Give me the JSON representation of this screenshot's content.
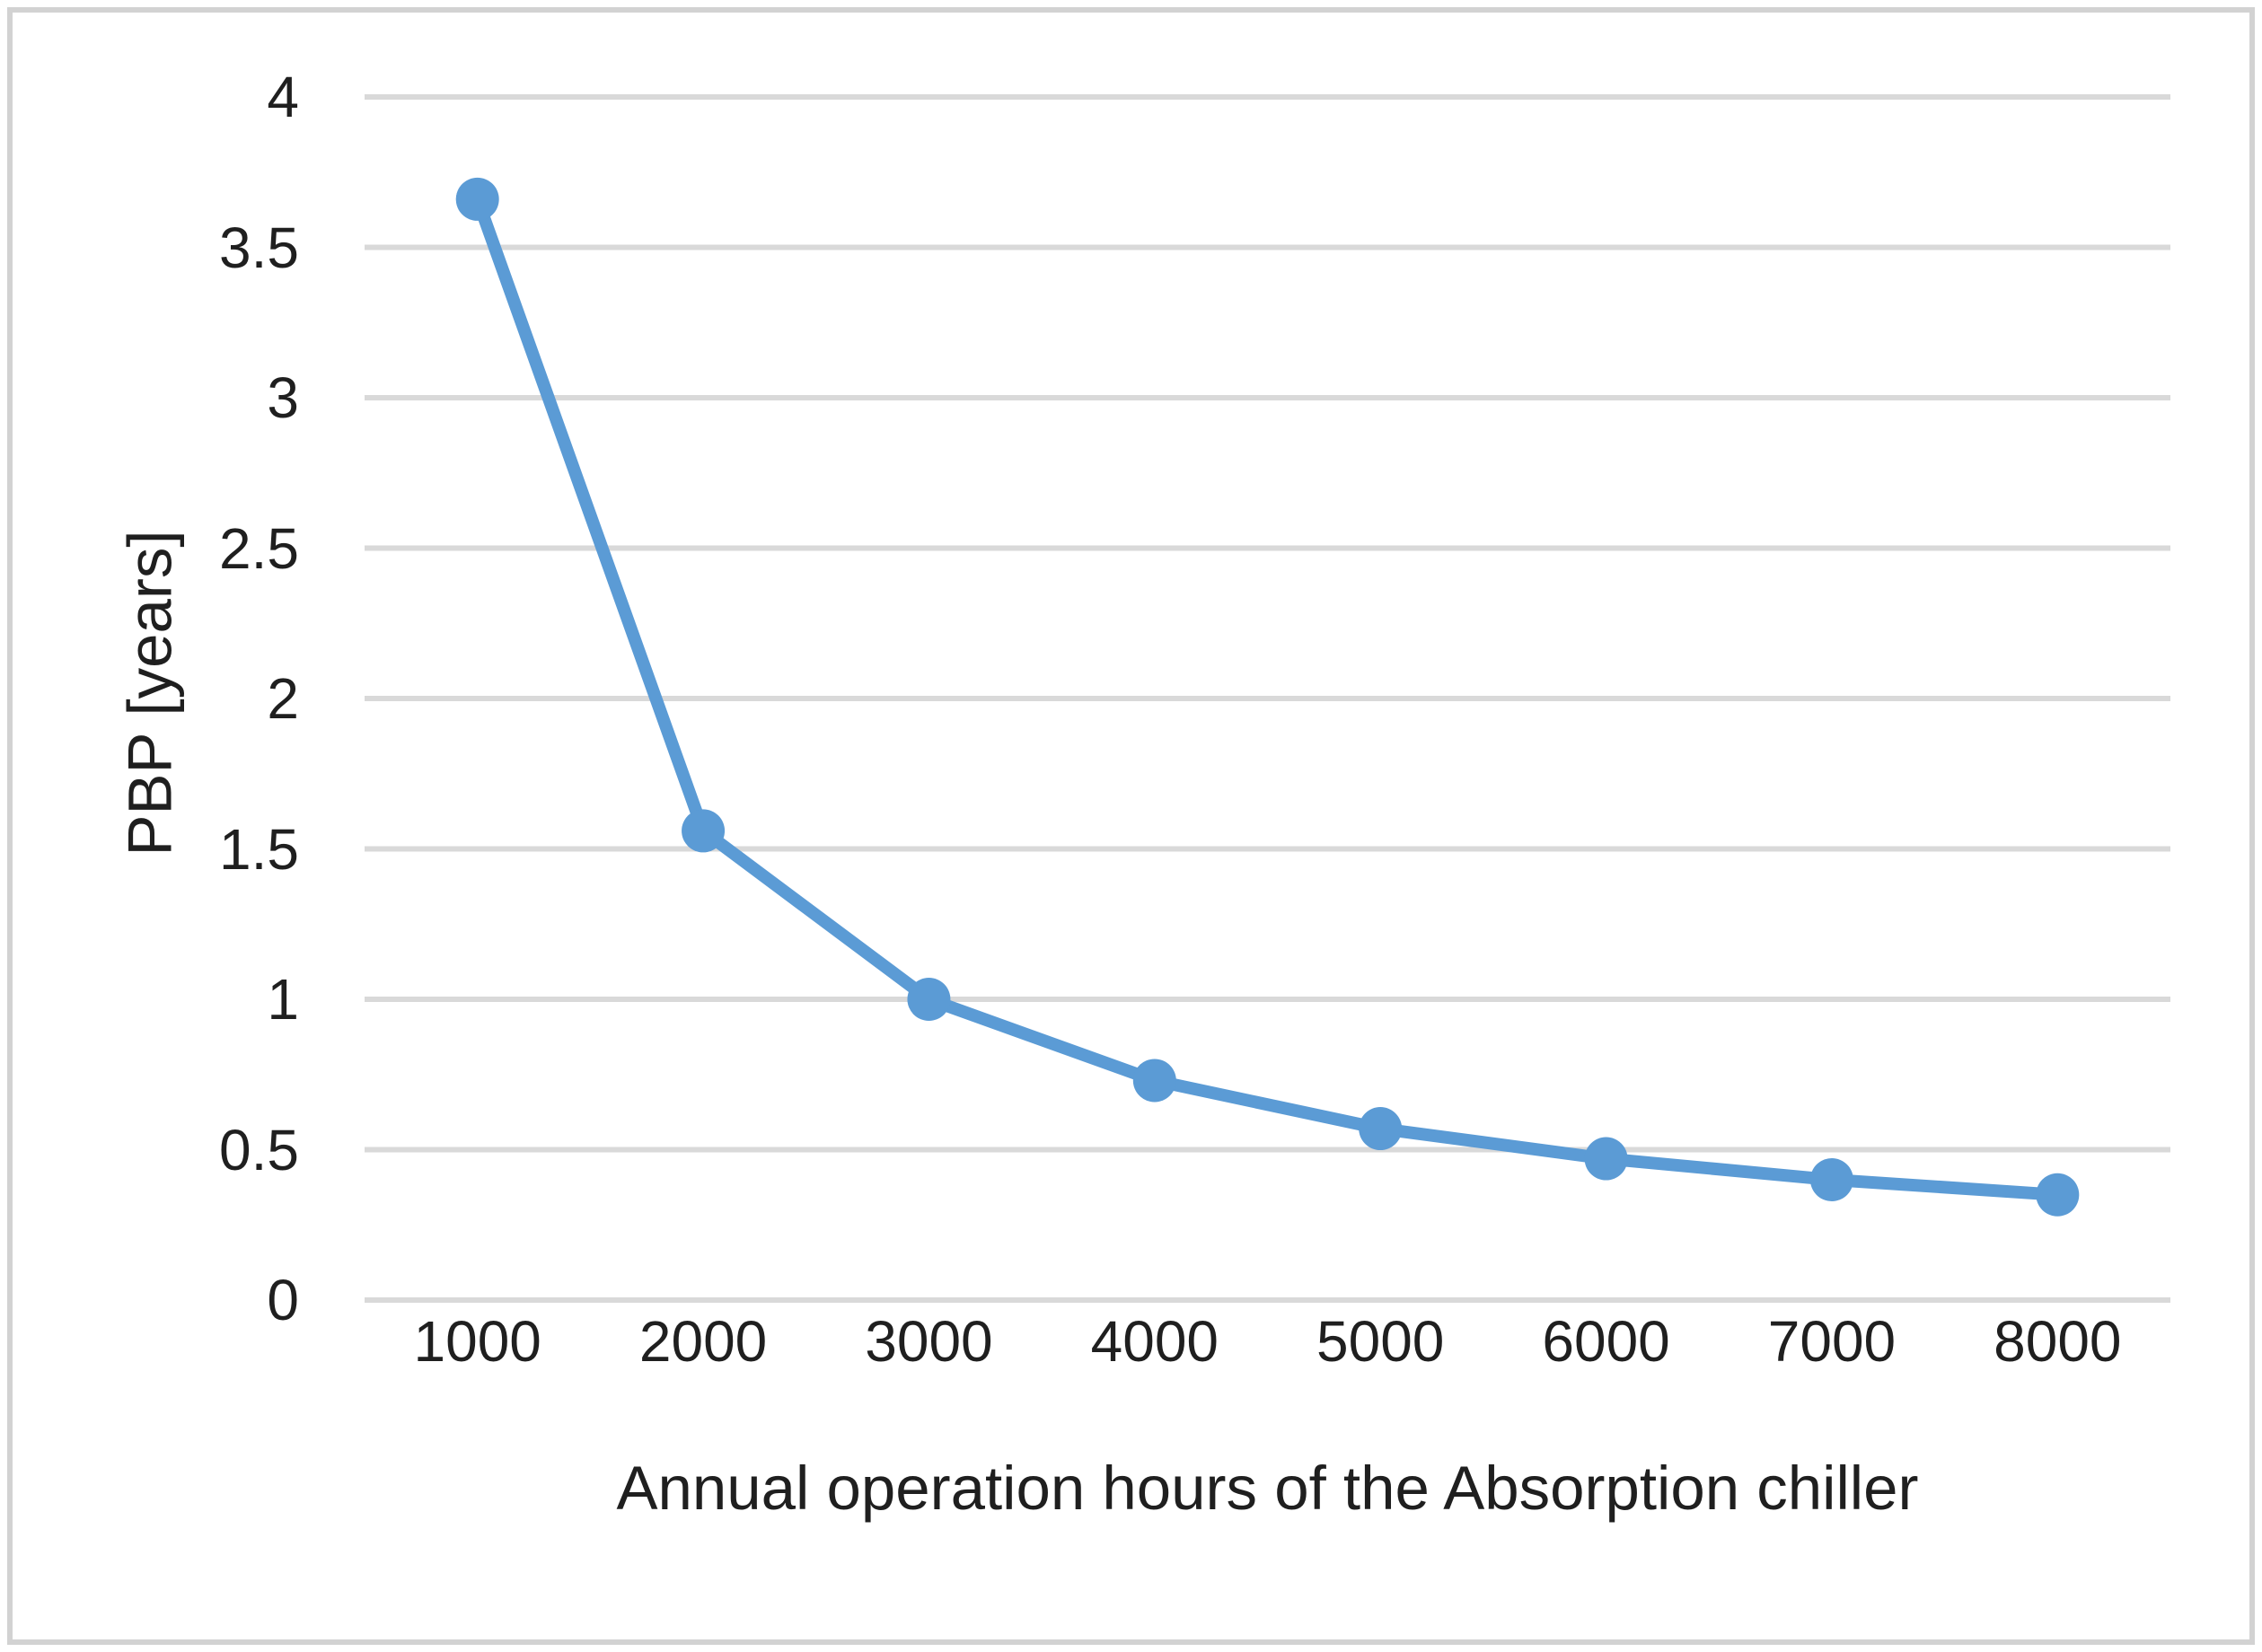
{
  "figure": {
    "background_color": "#ffffff",
    "border_color": "#d2d2d2"
  },
  "chart_data": {
    "type": "line",
    "title": "",
    "xlabel": "Annual operation hours of the Absorption chiller",
    "ylabel": "PBP [years]",
    "categories": [
      1000,
      2000,
      3000,
      4000,
      5000,
      6000,
      7000,
      8000
    ],
    "values": [
      3.66,
      1.56,
      1.0,
      0.73,
      0.57,
      0.47,
      0.4,
      0.35
    ],
    "series_name": "PBP",
    "ylim": [
      0,
      4
    ],
    "yticks": [
      0,
      0.5,
      1,
      1.5,
      2,
      2.5,
      3,
      3.5,
      4
    ],
    "ytick_labels": [
      "0",
      "0.5",
      "1",
      "1.5",
      "2",
      "2.5",
      "3",
      "3.5",
      "4"
    ],
    "xtick_labels": [
      "1000",
      "2000",
      "3000",
      "4000",
      "5000",
      "6000",
      "7000",
      "8000"
    ],
    "grid": true,
    "legend_position": "none",
    "line_color": "#5B9BD5",
    "marker": "circle",
    "gridline_color": "#D9D9D9",
    "axis_line_color": "#D9D9D9",
    "text_color": "#1f1f1f"
  }
}
